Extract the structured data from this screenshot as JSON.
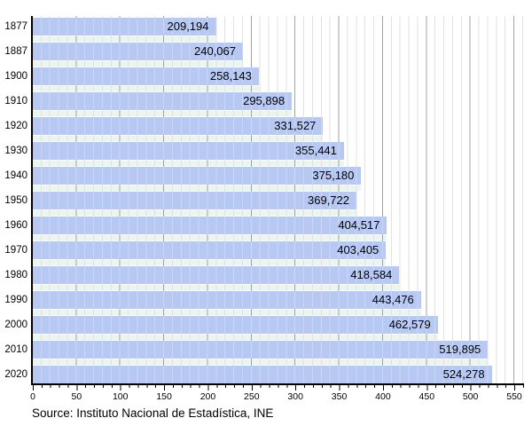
{
  "chart_data": {
    "type": "bar",
    "orientation": "horizontal",
    "title": "",
    "categories": [
      "1877",
      "1887",
      "1900",
      "1910",
      "1920",
      "1930",
      "1940",
      "1950",
      "1960",
      "1970",
      "1980",
      "1990",
      "2000",
      "2010",
      "2020"
    ],
    "values": [
      209194,
      240067,
      258143,
      295898,
      331527,
      355441,
      375180,
      369722,
      404517,
      403405,
      418584,
      443476,
      462579,
      519895,
      524278
    ],
    "value_labels": [
      "209,194",
      "240,067",
      "258,143",
      "295,898",
      "331,527",
      "355,441",
      "375,180",
      "369,722",
      "404,517",
      "403,405",
      "418,584",
      "443,476",
      "462,579",
      "519,895",
      "524,278"
    ],
    "x_ticks": [
      "0",
      "50",
      "100",
      "150",
      "200",
      "250",
      "300",
      "350",
      "400",
      "450",
      "500",
      "550"
    ],
    "x_tick_step_units": 50,
    "x_axis_scale": "thousands of inhabitants",
    "xlim_units": [
      0,
      560
    ],
    "grid": "vertical minor lines every 10 units, major lines every 50 units",
    "legend": "none",
    "source_note": "Source: Instituto Nacional de Estadística, INE",
    "colors": {
      "bar": "#b7c8f3",
      "band": "#e9f5ee",
      "grid_minor": "#e2e2e2",
      "grid_major": "#a3a3a3",
      "axis": "#000000",
      "text": "#000000"
    }
  }
}
